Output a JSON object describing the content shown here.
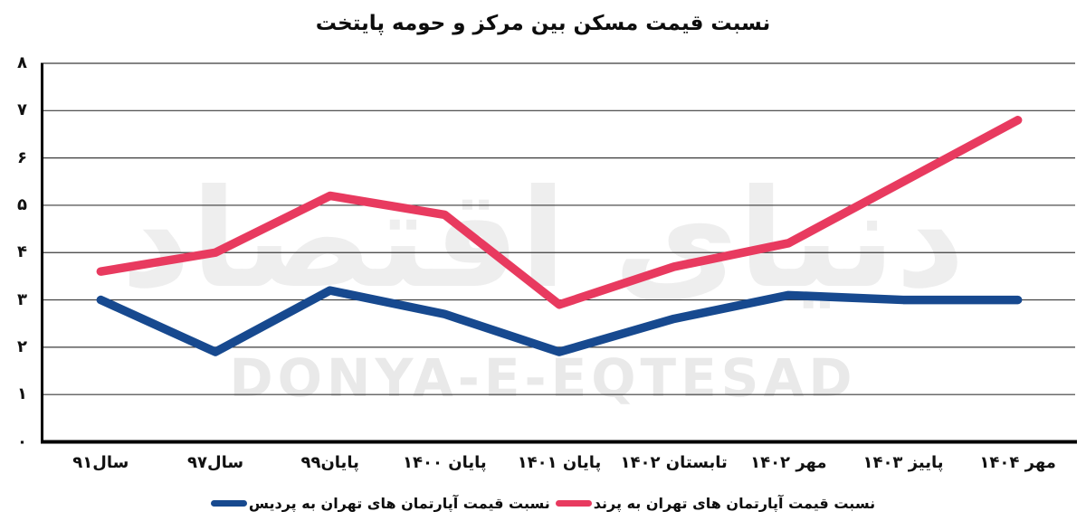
{
  "title": "نسبت قیمت مسکن بین مرکز و حومه پایتخت",
  "watermark": {
    "fa": "دنیای اقتصاد",
    "en": "DONYA-E-EQTESAD"
  },
  "colors": {
    "parand_line": "#e83a5f",
    "pardis_line": "#17498f",
    "gridline": "#3b3b3b",
    "axis": "#000000",
    "watermark_gray": "#e9e9e9"
  },
  "chart_data": {
    "type": "line",
    "title": "نسبت قیمت مسکن بین مرکز و حومه پایتخت",
    "categories": [
      "سال۹۱",
      "سال۹۷",
      "پایان۹۹",
      "پایان ۱۴۰۰",
      "پایان ۱۴۰۱",
      "تابستان ۱۴۰۲",
      "مهر ۱۴۰۲",
      "پاییز ۱۴۰۳",
      "مهر ۱۴۰۴"
    ],
    "series": [
      {
        "name": "نسبت قیمت آپارتمان های تهران به پرند",
        "color": "#e83a5f",
        "values": [
          3.6,
          4.0,
          5.2,
          4.8,
          2.9,
          3.7,
          4.2,
          5.5,
          6.8
        ]
      },
      {
        "name": "نسبت قیمت آپارتمان های تهران به پردیس",
        "color": "#17498f",
        "values": [
          3.0,
          1.9,
          3.2,
          2.7,
          1.9,
          2.6,
          3.1,
          3.0,
          3.0
        ]
      }
    ],
    "xlabel": "",
    "ylabel": "",
    "ylim": [
      0,
      8
    ],
    "yticks": [
      "۰",
      "۱",
      "۲",
      "۳",
      "۴",
      "۵",
      "۶",
      "۷",
      "۸"
    ],
    "grid": true,
    "legend_position": "bottom"
  }
}
